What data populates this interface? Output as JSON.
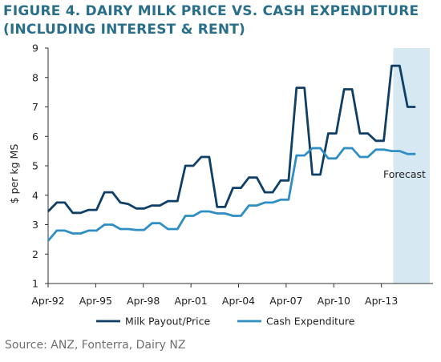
{
  "title": "FIGURE 4. DAIRY MILK PRICE VS. CASH EXPENDITURE (INCLUDING INTEREST & RENT)",
  "source": "Source: ANZ, Fonterra, Dairy NZ",
  "colors": {
    "milk": "#0f3f66",
    "cash": "#2f8fc4",
    "forecast": "#d6e8f1",
    "title": "#2a6f8a"
  },
  "chart_data": {
    "type": "line",
    "title": "FIGURE 4. DAIRY MILK PRICE VS. CASH EXPENDITURE (INCLUDING INTEREST & RENT)",
    "ylabel": "$ per kg MS",
    "xlabel": "",
    "ylim": [
      1,
      9
    ],
    "yticks": [
      1,
      2,
      3,
      4,
      5,
      6,
      7,
      8,
      9
    ],
    "xlim": [
      1992.25,
      2016.5
    ],
    "xtick_labels": [
      "Apr-92",
      "Apr-95",
      "Apr-98",
      "Apr-01",
      "Apr-04",
      "Apr-07",
      "Apr-10",
      "Apr-13"
    ],
    "xtick_values": [
      1992.25,
      1995.25,
      1998.25,
      2001.25,
      2004.25,
      2007.25,
      2010.25,
      2013.25
    ],
    "grid": false,
    "legend_position": "bottom",
    "forecast": {
      "label": "Forecast",
      "x_start": 2014.0,
      "x_end": 2016.3
    },
    "series": [
      {
        "name": "Milk Payout/Price",
        "points": [
          [
            1992.25,
            3.45
          ],
          [
            1992.8,
            3.75
          ],
          [
            1993.3,
            3.75
          ],
          [
            1993.8,
            3.4
          ],
          [
            1994.3,
            3.4
          ],
          [
            1994.8,
            3.5
          ],
          [
            1995.3,
            3.5
          ],
          [
            1995.8,
            4.1
          ],
          [
            1996.3,
            4.1
          ],
          [
            1996.8,
            3.75
          ],
          [
            1997.3,
            3.7
          ],
          [
            1997.8,
            3.55
          ],
          [
            1998.3,
            3.55
          ],
          [
            1998.8,
            3.65
          ],
          [
            1999.3,
            3.65
          ],
          [
            1999.8,
            3.8
          ],
          [
            2000.4,
            3.8
          ],
          [
            2000.9,
            5.0
          ],
          [
            2001.4,
            5.0
          ],
          [
            2001.9,
            5.3
          ],
          [
            2002.4,
            5.3
          ],
          [
            2002.9,
            3.6
          ],
          [
            2003.4,
            3.6
          ],
          [
            2003.9,
            4.25
          ],
          [
            2004.4,
            4.25
          ],
          [
            2004.9,
            4.6
          ],
          [
            2005.4,
            4.6
          ],
          [
            2005.9,
            4.1
          ],
          [
            2006.4,
            4.1
          ],
          [
            2006.9,
            4.5
          ],
          [
            2007.4,
            4.5
          ],
          [
            2007.9,
            7.65
          ],
          [
            2008.4,
            7.65
          ],
          [
            2008.9,
            4.7
          ],
          [
            2009.4,
            4.7
          ],
          [
            2009.9,
            6.1
          ],
          [
            2010.4,
            6.1
          ],
          [
            2010.9,
            7.6
          ],
          [
            2011.4,
            7.6
          ],
          [
            2011.9,
            6.1
          ],
          [
            2012.4,
            6.1
          ],
          [
            2012.9,
            5.85
          ],
          [
            2013.4,
            5.85
          ],
          [
            2013.9,
            8.4
          ],
          [
            2014.4,
            8.4
          ],
          [
            2014.9,
            7.0
          ],
          [
            2015.4,
            7.0
          ]
        ]
      },
      {
        "name": "Cash Expenditure",
        "points": [
          [
            1992.25,
            2.45
          ],
          [
            1992.8,
            2.8
          ],
          [
            1993.3,
            2.8
          ],
          [
            1993.8,
            2.7
          ],
          [
            1994.3,
            2.7
          ],
          [
            1994.8,
            2.8
          ],
          [
            1995.3,
            2.8
          ],
          [
            1995.8,
            3.0
          ],
          [
            1996.3,
            3.0
          ],
          [
            1996.8,
            2.85
          ],
          [
            1997.3,
            2.85
          ],
          [
            1997.8,
            2.82
          ],
          [
            1998.3,
            2.82
          ],
          [
            1998.8,
            3.05
          ],
          [
            1999.3,
            3.05
          ],
          [
            1999.8,
            2.85
          ],
          [
            2000.4,
            2.85
          ],
          [
            2000.9,
            3.3
          ],
          [
            2001.4,
            3.3
          ],
          [
            2001.9,
            3.45
          ],
          [
            2002.4,
            3.45
          ],
          [
            2002.9,
            3.38
          ],
          [
            2003.4,
            3.38
          ],
          [
            2003.9,
            3.3
          ],
          [
            2004.4,
            3.3
          ],
          [
            2004.9,
            3.65
          ],
          [
            2005.4,
            3.65
          ],
          [
            2005.9,
            3.75
          ],
          [
            2006.4,
            3.75
          ],
          [
            2006.9,
            3.85
          ],
          [
            2007.4,
            3.85
          ],
          [
            2007.9,
            5.35
          ],
          [
            2008.4,
            5.35
          ],
          [
            2008.9,
            5.6
          ],
          [
            2009.4,
            5.6
          ],
          [
            2009.9,
            5.25
          ],
          [
            2010.4,
            5.25
          ],
          [
            2010.9,
            5.6
          ],
          [
            2011.4,
            5.6
          ],
          [
            2011.9,
            5.3
          ],
          [
            2012.4,
            5.3
          ],
          [
            2012.9,
            5.55
          ],
          [
            2013.4,
            5.55
          ],
          [
            2013.9,
            5.5
          ],
          [
            2014.4,
            5.5
          ],
          [
            2014.9,
            5.4
          ],
          [
            2015.4,
            5.4
          ]
        ]
      }
    ]
  }
}
